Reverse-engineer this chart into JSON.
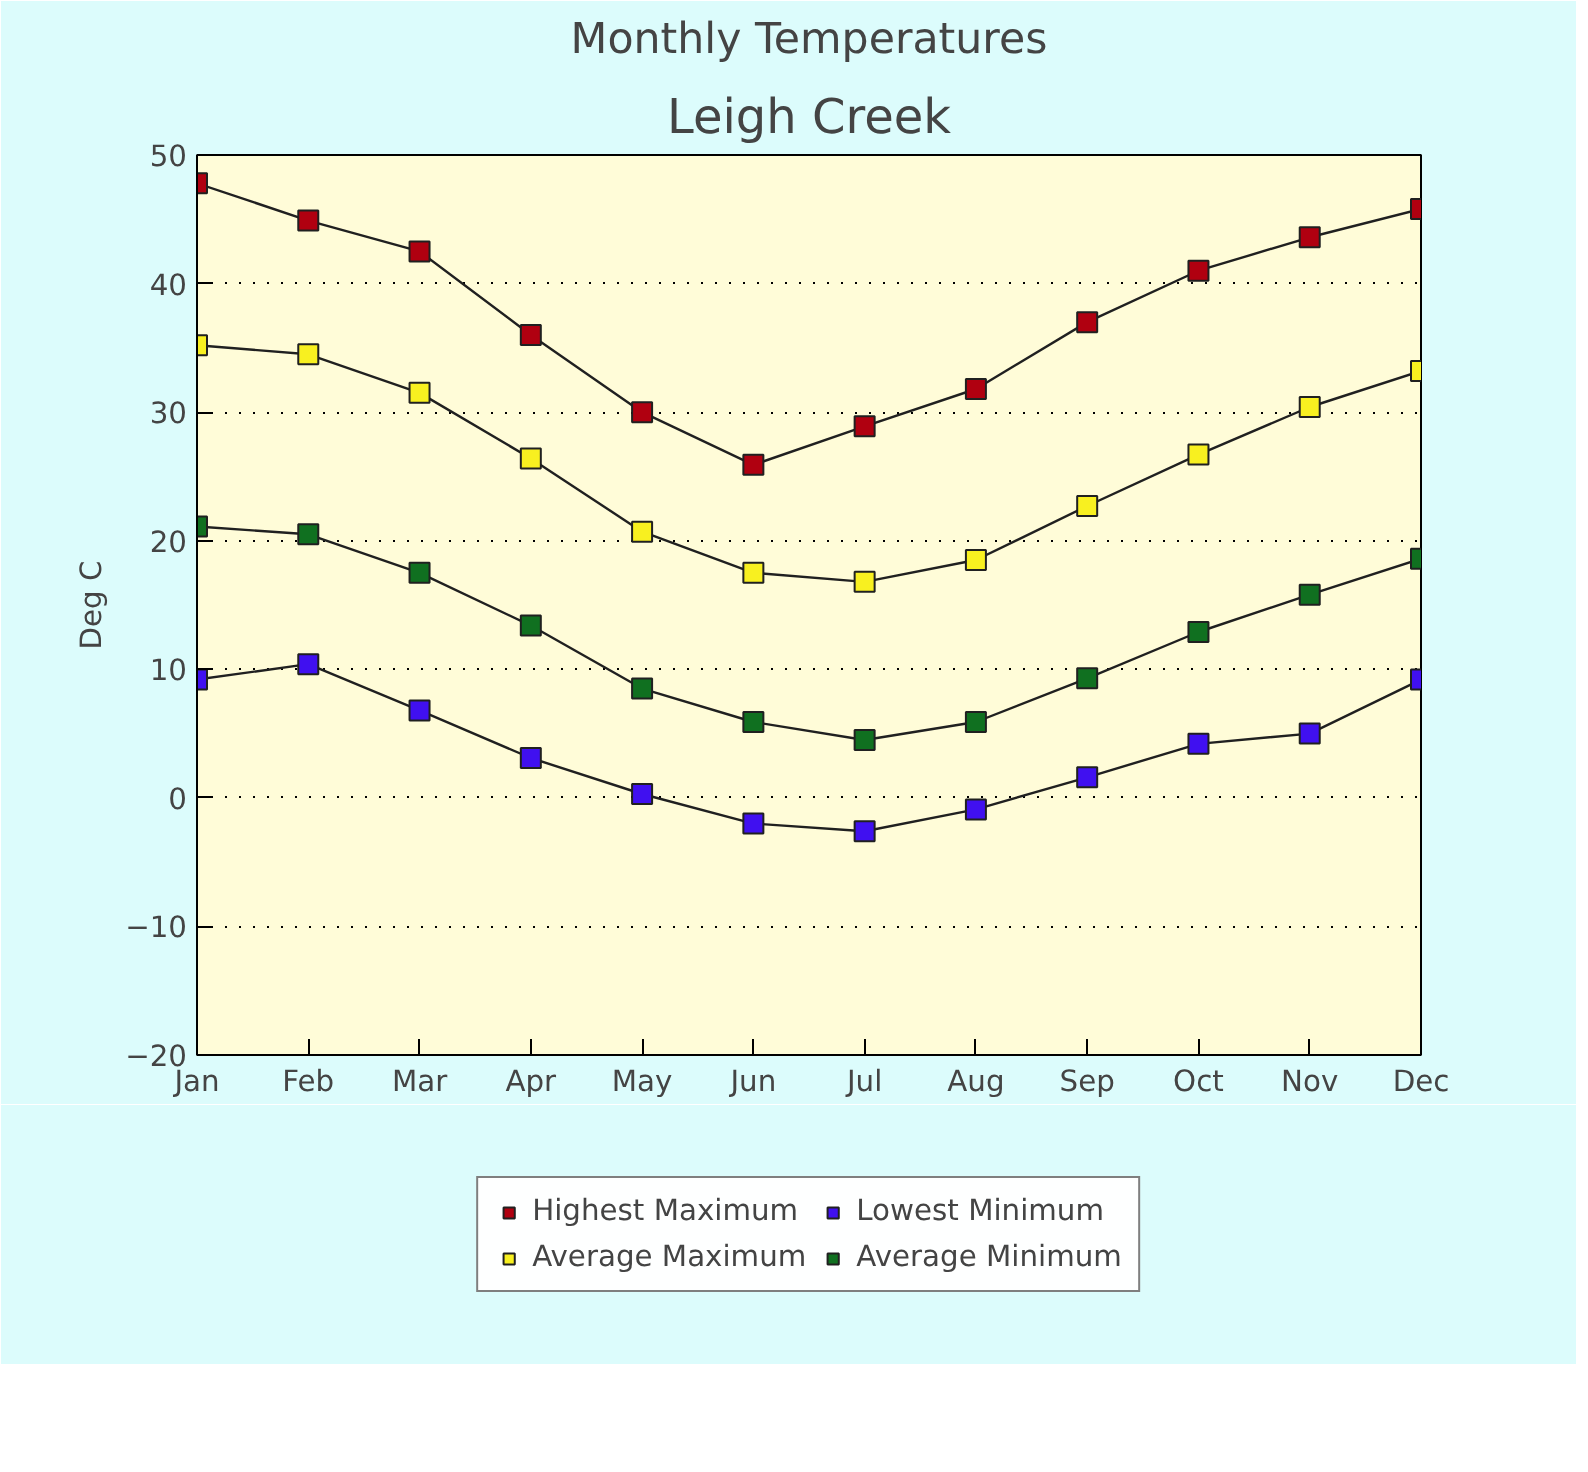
{
  "chart_data": {
    "type": "line",
    "title": "Monthly Temperatures",
    "subtitle": "Leigh Creek",
    "ylabel": "Deg C",
    "categories": [
      "Jan",
      "Feb",
      "Mar",
      "Apr",
      "May",
      "Jun",
      "Jul",
      "Aug",
      "Sep",
      "Oct",
      "Nov",
      "Dec"
    ],
    "series": [
      {
        "name": "Highest Maximum",
        "color": "#b00010",
        "values": [
          47.8,
          44.9,
          42.5,
          36.0,
          30.0,
          25.9,
          28.9,
          31.8,
          37.0,
          41.0,
          43.6,
          45.8
        ]
      },
      {
        "name": "Average Maximum",
        "color": "#f8f020",
        "values": [
          35.2,
          34.5,
          31.5,
          26.4,
          20.7,
          17.5,
          16.8,
          18.5,
          22.7,
          26.7,
          30.4,
          33.2
        ]
      },
      {
        "name": "Lowest Minimum",
        "color": "#4010f0",
        "values": [
          9.2,
          10.4,
          6.8,
          3.1,
          0.3,
          -2.0,
          -2.6,
          -0.9,
          1.6,
          4.2,
          5.0,
          9.2
        ]
      },
      {
        "name": "Average Minimum",
        "color": "#107020",
        "values": [
          21.1,
          20.5,
          17.5,
          13.4,
          8.5,
          5.9,
          4.5,
          5.9,
          9.3,
          12.9,
          15.8,
          18.6
        ]
      }
    ],
    "ylim": [
      -20,
      50
    ],
    "yticks": [
      -20,
      -10,
      0,
      10,
      20,
      30,
      40,
      50
    ],
    "grid": "y",
    "legend": "bottom",
    "marker": "square",
    "line_style": "solid"
  }
}
